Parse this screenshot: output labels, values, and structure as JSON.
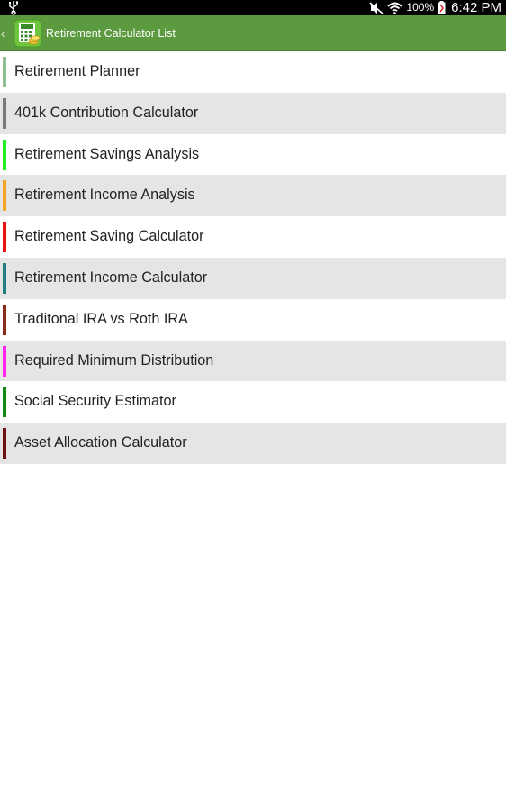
{
  "status_bar": {
    "battery_percent": "100%",
    "time": "6:42 PM",
    "icons": [
      "usb-icon",
      "mute-icon",
      "wifi-icon",
      "battery-icon"
    ]
  },
  "action_bar": {
    "title": "Retirement Calculator List",
    "icons": [
      "back-chevron-icon",
      "calculator-app-icon"
    ],
    "color": "#5b9a3f"
  },
  "calculators": [
    {
      "label": "Retirement Planner",
      "color": "#8fbf8f"
    },
    {
      "label": "401k Contribution Calculator",
      "color": "#7a7a7a"
    },
    {
      "label": "Retirement Savings Analysis",
      "color": "#22ee22"
    },
    {
      "label": "Retirement Income Analysis",
      "color": "#f5a623"
    },
    {
      "label": "Retirement Saving Calculator",
      "color": "#ee1111"
    },
    {
      "label": "Retirement Income Calculator",
      "color": "#1f7f80"
    },
    {
      "label": "Traditonal IRA vs Roth IRA",
      "color": "#8b2b1e"
    },
    {
      "label": "Required Minimum Distribution",
      "color": "#ff22ee"
    },
    {
      "label": "Social Security Estimator",
      "color": "#118811"
    },
    {
      "label": "Asset Allocation Calculator",
      "color": "#6e1010"
    }
  ]
}
